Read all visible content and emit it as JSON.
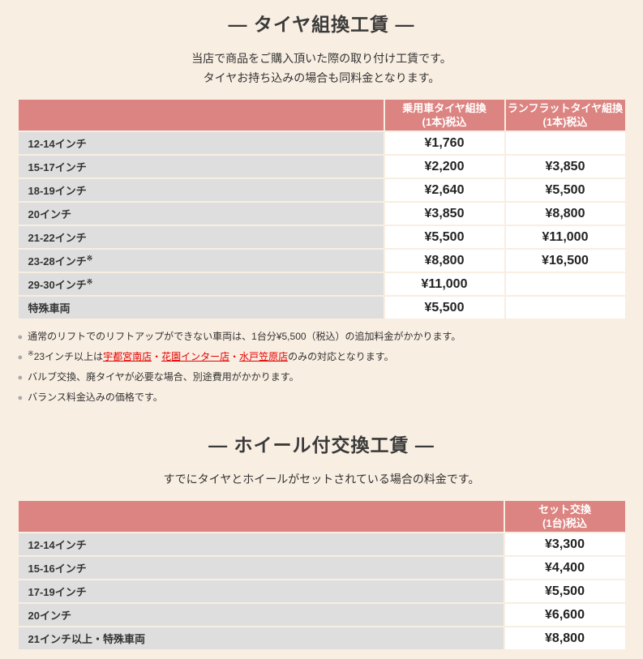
{
  "page": {
    "background": "#f8eee2",
    "accent_pink": "#dc8481",
    "row_label_gray": "#dedede",
    "link_red": "#e60000"
  },
  "bullet": "●",
  "section1": {
    "title": "― タイヤ組換工賃 ―",
    "description": [
      "当店で商品をご購入頂いた際の取り付け工賃です。",
      "タイヤお持ち込みの場合も同料金となります。"
    ],
    "table": {
      "columns": [
        "乗用車タイヤ組換\n(1本)税込",
        "ランフラットタイヤ組換\n(1本)税込"
      ],
      "rows": [
        {
          "label": "12-14インチ",
          "sup": "",
          "values": [
            "¥1,760",
            ""
          ]
        },
        {
          "label": "15-17インチ",
          "sup": "",
          "values": [
            "¥2,200",
            "¥3,850"
          ]
        },
        {
          "label": "18-19インチ",
          "sup": "",
          "values": [
            "¥2,640",
            "¥5,500"
          ]
        },
        {
          "label": "20インチ",
          "sup": "",
          "values": [
            "¥3,850",
            "¥8,800"
          ]
        },
        {
          "label": "21-22インチ",
          "sup": "",
          "values": [
            "¥5,500",
            "¥11,000"
          ]
        },
        {
          "label": "23-28インチ",
          "sup": "※",
          "values": [
            "¥8,800",
            "¥16,500"
          ]
        },
        {
          "label": "29-30インチ",
          "sup": "※",
          "values": [
            "¥11,000",
            ""
          ]
        },
        {
          "label": "特殊車両",
          "sup": "",
          "values": [
            "¥5,500",
            ""
          ]
        }
      ]
    },
    "notes": [
      {
        "segments": [
          {
            "t": "text",
            "v": "通常のリフトでのリフトアップができない車両は、1台分¥5,500（税込）の追加料金がかかります。"
          }
        ]
      },
      {
        "segments": [
          {
            "t": "sup",
            "v": "※"
          },
          {
            "t": "text",
            "v": "23インチ以上は"
          },
          {
            "t": "link",
            "v": "宇都宮南店"
          },
          {
            "t": "dot",
            "v": "・"
          },
          {
            "t": "link",
            "v": "花園インター店"
          },
          {
            "t": "dot",
            "v": "・"
          },
          {
            "t": "link",
            "v": "水戸笠原店"
          },
          {
            "t": "text",
            "v": "のみの対応となります。"
          }
        ]
      },
      {
        "segments": [
          {
            "t": "text",
            "v": "バルブ交換、廃タイヤが必要な場合、別途費用がかかります。"
          }
        ]
      },
      {
        "segments": [
          {
            "t": "text",
            "v": "バランス料金込みの価格です。"
          }
        ]
      }
    ]
  },
  "section2": {
    "title": "― ホイール付交換工賃 ―",
    "description": [
      "すでにタイヤとホイールがセットされている場合の料金です。"
    ],
    "table": {
      "columns": [
        "セット交換\n(1台)税込"
      ],
      "rows": [
        {
          "label": "12-14インチ",
          "sup": "",
          "values": [
            "¥3,300"
          ]
        },
        {
          "label": "15-16インチ",
          "sup": "",
          "values": [
            "¥4,400"
          ]
        },
        {
          "label": "17-19インチ",
          "sup": "",
          "values": [
            "¥5,500"
          ]
        },
        {
          "label": "20インチ",
          "sup": "",
          "values": [
            "¥6,600"
          ]
        },
        {
          "label": "21インチ以上・特殊車両",
          "sup": "",
          "values": [
            "¥8,800"
          ]
        }
      ]
    }
  }
}
